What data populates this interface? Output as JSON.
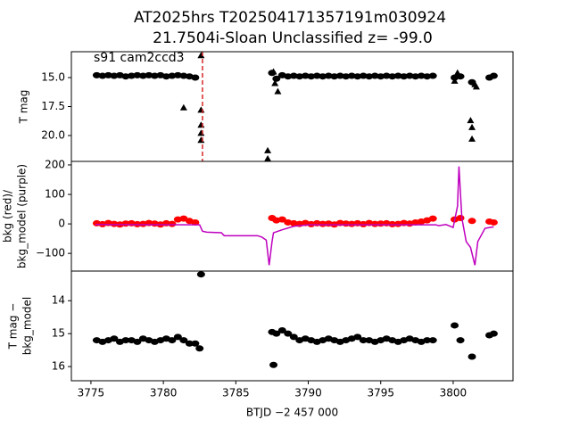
{
  "title": [
    "AT2025hrs  T202504171357191m030924",
    "21.7504i-Sloan Unclassified z= -99.0"
  ],
  "annotation": "s91 cam2ccd3",
  "chart_data": [
    {
      "type": "scatter",
      "ylabel": [
        "T mag"
      ],
      "xlim": [
        3773.65,
        3804.13
      ],
      "ylim": [
        22.23,
        12.77
      ],
      "yticks": [
        {
          "value": 15,
          "label": "15.0"
        },
        17.5,
        {
          "value": 20,
          "label": "20.0"
        }
      ],
      "vline": 3782.7,
      "vline_color": "#d62728",
      "series": [
        {
          "color": "#000000",
          "marker": "o",
          "x": [
            3775.4,
            3775.8,
            3776.2,
            3776.6,
            3777.0,
            3777.4,
            3777.8,
            3778.2,
            3778.6,
            3779.0,
            3779.4,
            3779.8,
            3780.2,
            3780.6,
            3781.0,
            3781.4,
            3781.8,
            3782.2,
            3787.5,
            3787.8,
            3788.2,
            3788.6,
            3789.0,
            3789.4,
            3789.8,
            3790.2,
            3790.6,
            3791.0,
            3791.4,
            3791.8,
            3792.2,
            3792.6,
            3793.0,
            3793.4,
            3793.8,
            3794.2,
            3794.6,
            3795.0,
            3795.4,
            3795.8,
            3796.2,
            3796.6,
            3797.0,
            3797.4,
            3797.8,
            3798.2,
            3798.6,
            3800.1,
            3800.5,
            3801.3,
            3802.5,
            3802.8
          ],
          "values": [
            14.8,
            14.85,
            14.8,
            14.85,
            14.8,
            14.9,
            14.85,
            14.8,
            14.85,
            14.8,
            14.85,
            14.8,
            14.9,
            14.85,
            14.8,
            14.85,
            14.9,
            15.0,
            14.6,
            15.1,
            14.8,
            14.9,
            14.85,
            14.9,
            14.85,
            14.9,
            14.85,
            14.9,
            14.85,
            14.9,
            14.85,
            14.9,
            14.85,
            14.9,
            14.85,
            14.9,
            14.85,
            14.9,
            14.85,
            14.9,
            14.85,
            14.9,
            14.85,
            14.9,
            14.85,
            14.9,
            14.85,
            15.0,
            14.9,
            15.4,
            15.0,
            14.85
          ]
        },
        {
          "color": "#000000",
          "marker": "^",
          "x": [
            3781.4,
            3782.6,
            3782.6,
            3782.6,
            3782.6,
            3782.6,
            3787.2,
            3787.2,
            3787.6,
            3787.7,
            3787.9,
            3800.1,
            3800.3,
            3801.2,
            3801.3,
            3801.3,
            3801.5,
            3801.6
          ],
          "values": [
            17.6,
            13.1,
            17.8,
            19.1,
            19.8,
            20.4,
            21.3,
            22.0,
            14.5,
            15.5,
            16.2,
            15.3,
            14.6,
            18.7,
            19.3,
            20.3,
            15.6,
            15.8
          ]
        }
      ]
    },
    {
      "type": "scatter",
      "ylabel": [
        "bkg (red)/",
        "bkg_model (purple)"
      ],
      "xlim": [
        3773.65,
        3804.13
      ],
      "ylim": [
        -160,
        212
      ],
      "yticks": [
        200,
        100,
        0,
        {
          "value": -100,
          "label": "−100"
        }
      ],
      "series": [
        {
          "color": "#ff0000",
          "marker": "o",
          "x": [
            3775.4,
            3775.8,
            3776.2,
            3776.6,
            3777.0,
            3777.4,
            3777.8,
            3778.2,
            3778.6,
            3779.0,
            3779.4,
            3779.8,
            3780.2,
            3780.6,
            3781.0,
            3781.4,
            3781.8,
            3782.2,
            3787.5,
            3787.8,
            3788.2,
            3788.6,
            3789.0,
            3789.4,
            3789.8,
            3790.2,
            3790.6,
            3791.0,
            3791.4,
            3791.8,
            3792.2,
            3792.6,
            3793.0,
            3793.4,
            3793.8,
            3794.2,
            3794.6,
            3795.0,
            3795.4,
            3795.8,
            3796.2,
            3796.6,
            3797.0,
            3797.4,
            3797.8,
            3798.2,
            3798.6,
            3800.1,
            3800.5,
            3801.3,
            3802.5,
            3802.8
          ],
          "values": [
            2,
            -1,
            3,
            0,
            -2,
            1,
            2,
            -1,
            0,
            3,
            1,
            -2,
            2,
            0,
            15,
            18,
            10,
            5,
            20,
            12,
            15,
            5,
            2,
            0,
            3,
            -1,
            2,
            0,
            1,
            -2,
            3,
            1,
            0,
            2,
            -1,
            3,
            0,
            1,
            2,
            -1,
            0,
            3,
            1,
            5,
            8,
            12,
            18,
            15,
            20,
            10,
            8,
            5
          ]
        },
        {
          "color": "#bf00bf",
          "marker": "line",
          "x": [
            3775.3,
            3782.5,
            3782.7,
            3783.0,
            3784.0,
            3784.2,
            3786.5,
            3786.8,
            3787.1,
            3787.3,
            3787.5,
            3787.6,
            3788.2,
            3789.0,
            3790,
            3798.8,
            3799.0,
            3799.5,
            3800.0,
            3800.3,
            3800.4,
            3800.6,
            3800.9,
            3801.2,
            3801.5,
            3801.7,
            3802.2,
            3802.8
          ],
          "values": [
            -2,
            -3,
            -25,
            -28,
            -30,
            -40,
            -40,
            -45,
            -55,
            -140,
            -60,
            -30,
            -20,
            -8,
            -3,
            -3,
            -6,
            -2,
            -12,
            60,
            195,
            20,
            -60,
            -80,
            -140,
            -60,
            -15,
            -10
          ]
        }
      ]
    },
    {
      "type": "scatter",
      "ylabel": [
        "T mag −",
        "bkg_model"
      ],
      "xlabel": "BTJD −2 457 000",
      "xlim": [
        3773.65,
        3804.13
      ],
      "xticks": [
        3775,
        3780,
        3785,
        3790,
        3795,
        3800
      ],
      "ylim": [
        16.43,
        13.1
      ],
      "yticks": [
        14,
        15,
        16
      ],
      "series": [
        {
          "color": "#000000",
          "marker": "o",
          "x": [
            3775.4,
            3775.8,
            3776.2,
            3776.6,
            3777.0,
            3777.4,
            3777.8,
            3778.2,
            3778.6,
            3779.0,
            3779.4,
            3779.8,
            3780.2,
            3780.6,
            3781.0,
            3781.4,
            3781.8,
            3782.2,
            3787.5,
            3787.8,
            3788.2,
            3788.6,
            3789.0,
            3789.4,
            3789.8,
            3790.2,
            3790.6,
            3791.0,
            3791.4,
            3791.8,
            3792.2,
            3792.6,
            3793.0,
            3793.4,
            3793.8,
            3794.2,
            3794.6,
            3795.0,
            3795.4,
            3795.8,
            3796.2,
            3796.6,
            3797.0,
            3797.4,
            3797.8,
            3798.2,
            3798.6,
            3800.1,
            3800.5,
            3801.3,
            3802.5,
            3802.8
          ],
          "values": [
            15.2,
            15.25,
            15.2,
            15.15,
            15.25,
            15.2,
            15.2,
            15.25,
            15.15,
            15.2,
            15.25,
            15.2,
            15.15,
            15.2,
            15.1,
            15.2,
            15.3,
            15.3,
            14.95,
            15.0,
            14.9,
            15.0,
            15.1,
            15.2,
            15.15,
            15.2,
            15.25,
            15.2,
            15.15,
            15.2,
            15.25,
            15.2,
            15.15,
            15.1,
            15.2,
            15.2,
            15.25,
            15.2,
            15.15,
            15.2,
            15.25,
            15.2,
            15.15,
            15.2,
            15.25,
            15.2,
            15.2,
            14.75,
            15.2,
            15.7,
            15.05,
            15.0
          ]
        },
        {
          "color": "#000000",
          "marker": "o",
          "x": [
            3782.6,
            3787.6,
            3782.5
          ],
          "values": [
            13.2,
            15.95,
            15.45
          ]
        }
      ]
    }
  ]
}
